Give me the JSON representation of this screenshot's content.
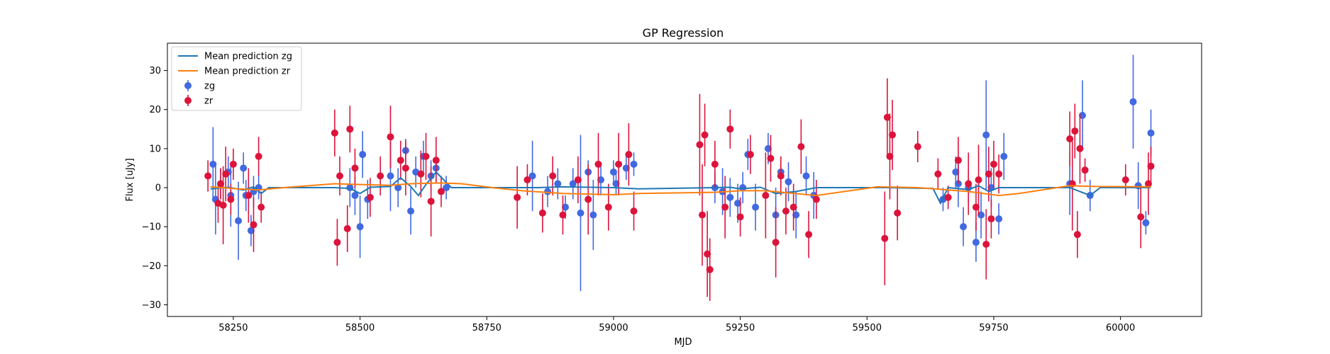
{
  "chart_data": {
    "type": "scatter",
    "title": "GP Regression",
    "xlabel": "MJD",
    "ylabel": "Flux [uJy]",
    "xlim": [
      58120,
      60160
    ],
    "ylim": [
      -33,
      37
    ],
    "xticks": [
      58250,
      58500,
      58750,
      59000,
      59250,
      59500,
      59750,
      60000
    ],
    "yticks": [
      -30,
      -20,
      -10,
      0,
      10,
      20,
      30
    ],
    "legend_position": "top-left",
    "series": [
      {
        "name": "Mean prediction zg",
        "kind": "line",
        "color": "#1f77b4",
        "x": [
          58205,
          58240,
          58270,
          58290,
          58305,
          58320,
          58450,
          58480,
          58500,
          58520,
          58560,
          58580,
          58600,
          58615,
          58630,
          58650,
          58680,
          58850,
          58900,
          59000,
          59050,
          59200,
          59230,
          59250,
          59290,
          59320,
          59360,
          59400,
          59540,
          59630,
          59645,
          59660,
          59700,
          59720,
          59740,
          59760,
          59900,
          59940,
          59960,
          60060
        ],
        "y": [
          -0.3,
          0.1,
          -0.6,
          0.2,
          -1.5,
          0.0,
          0.0,
          -0.2,
          -1.5,
          0.1,
          0.3,
          2.5,
          0.3,
          -2.0,
          0.8,
          4.0,
          0.0,
          0.0,
          0.2,
          0.0,
          -0.3,
          0.0,
          0.1,
          -0.3,
          0.1,
          -1.5,
          -1.0,
          0.0,
          0.0,
          -0.2,
          -4.0,
          0.0,
          -0.5,
          0.5,
          -1.0,
          0.0,
          0.0,
          -2.0,
          0.0,
          0.0
        ]
      },
      {
        "name": "Mean prediction zr",
        "kind": "line",
        "color": "#ff7f0e",
        "x": [
          58205,
          58260,
          58300,
          58350,
          58450,
          58500,
          58560,
          58600,
          58660,
          58700,
          58760,
          58820,
          58900,
          59000,
          59050,
          59200,
          59250,
          59300,
          59400,
          59520,
          59600,
          59650,
          59700,
          59760,
          59800,
          59900,
          59950,
          60060
        ],
        "y": [
          0.2,
          -0.3,
          -0.6,
          0.0,
          1.0,
          0.8,
          0.6,
          1.0,
          1.2,
          1.0,
          0.0,
          -0.8,
          -1.5,
          -1.8,
          -1.5,
          -1.2,
          -0.8,
          -0.8,
          -2.0,
          0.2,
          0.0,
          -0.5,
          -1.0,
          -2.0,
          -1.5,
          0.5,
          0.3,
          0.2
        ]
      },
      {
        "name": "zg",
        "kind": "errorbar",
        "color": "#4169e1",
        "x": [
          58210,
          58215,
          58225,
          58240,
          58245,
          58260,
          58270,
          58275,
          58285,
          58290,
          58300,
          58480,
          58490,
          58500,
          58505,
          58515,
          58560,
          58575,
          58590,
          58600,
          58610,
          58625,
          58640,
          58650,
          58670,
          58840,
          58870,
          58890,
          58905,
          58920,
          58935,
          58950,
          58960,
          58975,
          59000,
          59005,
          59025,
          59040,
          59200,
          59215,
          59230,
          59245,
          59255,
          59265,
          59280,
          59305,
          59320,
          59330,
          59345,
          59360,
          59380,
          59395,
          59650,
          59675,
          59680,
          59690,
          59700,
          59715,
          59725,
          59735,
          59745,
          59760,
          59770,
          59900,
          59925,
          59940,
          60025,
          60035,
          60050,
          60060
        ],
        "y": [
          6.0,
          -3.0,
          1.0,
          4.0,
          -2.0,
          -8.5,
          5.0,
          -2.0,
          -11.0,
          -1.0,
          0.0,
          0.0,
          -2.0,
          -10.0,
          8.5,
          -3.0,
          3.0,
          0.0,
          9.5,
          -6.0,
          4.0,
          8.0,
          3.0,
          5.0,
          0.0,
          3.0,
          -1.0,
          1.0,
          -5.0,
          1.0,
          -6.5,
          4.0,
          -7.0,
          2.0,
          4.0,
          1.0,
          5.0,
          6.0,
          0.0,
          -1.0,
          -2.5,
          -4.0,
          0.0,
          8.5,
          -5.0,
          10.0,
          -7.0,
          4.0,
          1.5,
          -7.0,
          3.0,
          -2.0,
          -3.0,
          4.0,
          1.0,
          -10.0,
          0.0,
          -14.0,
          -7.0,
          13.5,
          0.0,
          -8.0,
          8.0,
          1.0,
          18.5,
          -2.0,
          22.0,
          0.5,
          -9.0,
          14.0
        ],
        "err": [
          9.5,
          9.0,
          4.0,
          4.0,
          8.0,
          10.0,
          4.0,
          4.0,
          4.0,
          4.0,
          3.0,
          5.0,
          5.0,
          8.0,
          6.0,
          5.0,
          9.0,
          5.0,
          3.0,
          6.0,
          4.0,
          4.0,
          4.0,
          3.0,
          3.0,
          9.0,
          4.0,
          4.0,
          3.0,
          4.0,
          20.0,
          3.0,
          9.0,
          4.0,
          3.0,
          3.0,
          3.0,
          3.0,
          4.0,
          6.0,
          5.0,
          5.0,
          4.0,
          4.0,
          6.0,
          4.0,
          7.0,
          4.0,
          5.0,
          6.0,
          5.0,
          6.0,
          3.0,
          4.0,
          6.0,
          5.0,
          4.0,
          5.0,
          6.0,
          14.0,
          5.0,
          4.0,
          6.0,
          8.0,
          9.0,
          4.0,
          12.0,
          6.0,
          3.0,
          6.0
        ]
      },
      {
        "name": "zr",
        "kind": "errorbar",
        "color": "#dc143c",
        "x": [
          58200,
          58220,
          58225,
          58230,
          58235,
          58245,
          58250,
          58280,
          58290,
          58300,
          58305,
          58450,
          58455,
          58460,
          58475,
          58480,
          58490,
          58520,
          58540,
          58560,
          58580,
          58590,
          58620,
          58630,
          58640,
          58650,
          58660,
          58810,
          58830,
          58860,
          58880,
          58900,
          58930,
          58950,
          58970,
          58990,
          59010,
          59030,
          59040,
          59170,
          59175,
          59180,
          59185,
          59190,
          59200,
          59220,
          59230,
          59250,
          59270,
          59300,
          59310,
          59320,
          59330,
          59340,
          59355,
          59370,
          59385,
          59400,
          59535,
          59540,
          59545,
          59550,
          59560,
          59600,
          59640,
          59660,
          59680,
          59700,
          59715,
          59720,
          59735,
          59740,
          59745,
          59750,
          59760,
          59900,
          59905,
          59910,
          59915,
          59920,
          59930,
          60010,
          60040,
          60055,
          60060
        ],
        "y": [
          3.0,
          -4.0,
          1.0,
          -4.5,
          3.5,
          -3.0,
          6.0,
          -2.0,
          -9.5,
          8.0,
          -5.0,
          14.0,
          -14.0,
          3.0,
          -10.5,
          15.0,
          5.0,
          -2.5,
          3.0,
          13.0,
          7.0,
          5.0,
          3.5,
          8.0,
          -3.5,
          7.0,
          -1.0,
          -2.5,
          2.0,
          -6.5,
          3.0,
          -7.0,
          2.0,
          -3.0,
          6.0,
          -5.0,
          6.0,
          8.5,
          -6.0,
          11.0,
          -7.0,
          13.5,
          -17.0,
          -21.0,
          6.0,
          -5.0,
          15.0,
          -7.5,
          8.5,
          -2.0,
          7.5,
          -14.0,
          3.0,
          -6.0,
          -5.0,
          10.5,
          -12.0,
          -3.0,
          -13.0,
          18.0,
          8.0,
          13.5,
          -6.5,
          10.5,
          3.5,
          -2.5,
          7.0,
          1.0,
          -5.0,
          2.0,
          -14.5,
          3.5,
          -8.0,
          6.0,
          3.5,
          12.5,
          1.0,
          14.5,
          -12.0,
          10.0,
          4.5,
          2.0,
          -7.5,
          1.0,
          5.5
        ],
        "err": [
          4.0,
          5.0,
          4.0,
          10.0,
          7.0,
          4.0,
          4.0,
          7.0,
          7.0,
          5.0,
          4.0,
          6.0,
          6.0,
          5.0,
          6.0,
          6.0,
          5.0,
          5.0,
          5.0,
          8.0,
          5.0,
          7.0,
          6.0,
          6.0,
          9.0,
          6.0,
          4.0,
          8.0,
          4.0,
          5.0,
          5.0,
          5.0,
          6.0,
          9.0,
          8.0,
          6.0,
          8.0,
          8.0,
          5.0,
          13.0,
          13.0,
          8.0,
          11.0,
          8.0,
          6.0,
          8.0,
          5.0,
          5.0,
          5.0,
          11.0,
          6.0,
          9.0,
          5.0,
          6.0,
          6.0,
          7.0,
          6.0,
          5.0,
          12.0,
          10.0,
          11.0,
          9.0,
          7.0,
          4.0,
          4.0,
          3.0,
          6.0,
          8.0,
          6.0,
          9.0,
          9.0,
          7.0,
          5.0,
          6.0,
          5.0,
          7.0,
          12.0,
          7.0,
          6.0,
          9.0,
          3.0,
          4.0,
          8.0,
          8.0,
          5.0
        ]
      }
    ]
  }
}
